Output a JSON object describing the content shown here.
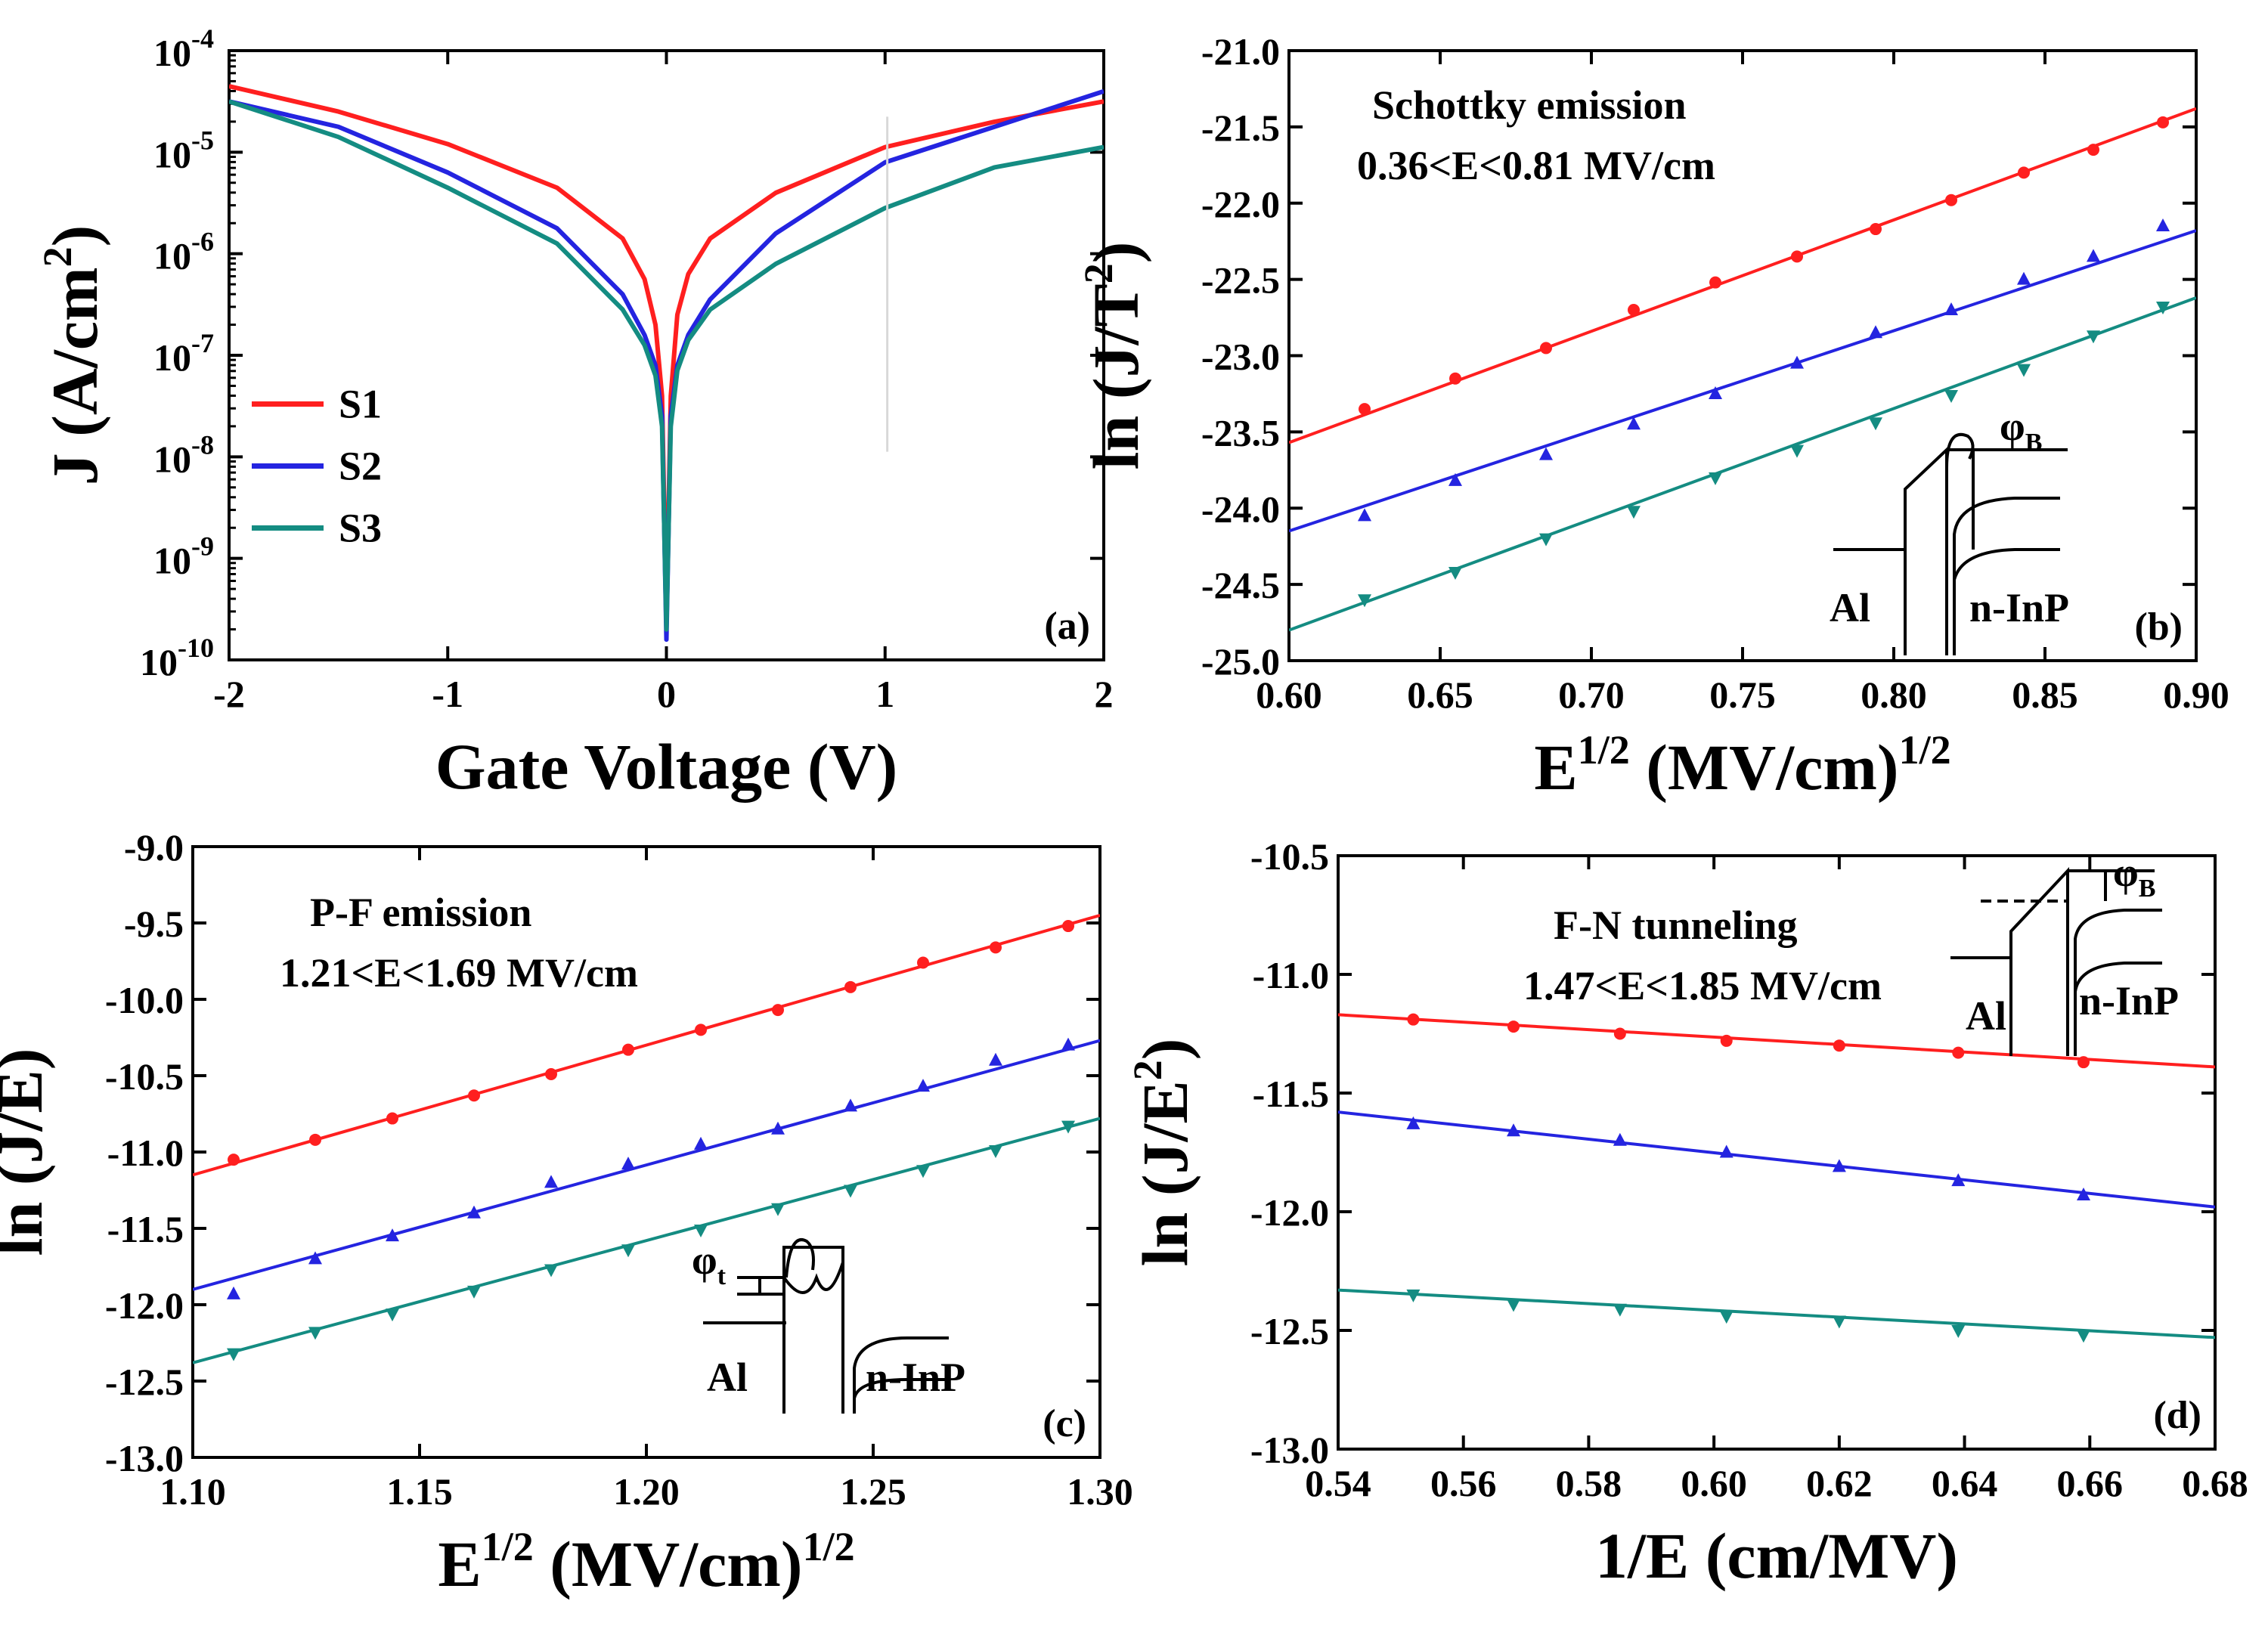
{
  "colors": {
    "S1": "#ff1f1f",
    "S2": "#2424e0",
    "S3": "#148c82"
  },
  "chart_data": [
    {
      "id": "a",
      "type": "line",
      "panel_label": "(a)",
      "xlabel": "Gate Voltage (V)",
      "ylabel": "J (A/cm²)",
      "ylabel_parts": {
        "main": "J (A/cm",
        "sup": "2",
        "end": ")"
      },
      "yscale": "log",
      "xlim": [
        -2,
        2
      ],
      "ylim_exp": [
        -10,
        -4
      ],
      "xticks": [
        -2,
        -1,
        0,
        1,
        2
      ],
      "xtick_labels": [
        "-2",
        "-1",
        "0",
        "1",
        "2"
      ],
      "ytick_exps": [
        -4,
        -5,
        -6,
        -7,
        -8,
        -9,
        -10
      ],
      "ytick_labels": [
        "-4",
        "-5",
        "-6",
        "-7",
        "-8",
        "-9",
        "-10"
      ],
      "ytick_base": "10",
      "legend": [
        "S1",
        "S2",
        "S3"
      ],
      "series": [
        {
          "name": "S1",
          "x": [
            -2,
            -1.5,
            -1,
            -0.5,
            -0.2,
            -0.1,
            -0.05,
            -0.02,
            0,
            0.02,
            0.05,
            0.1,
            0.2,
            0.5,
            1,
            1.5,
            2
          ],
          "log10_y": [
            -4.35,
            -4.6,
            -4.92,
            -5.35,
            -5.85,
            -6.25,
            -6.7,
            -7.4,
            -9.6,
            -7.4,
            -6.6,
            -6.2,
            -5.85,
            -5.4,
            -4.95,
            -4.7,
            -4.5
          ]
        },
        {
          "name": "S2",
          "x": [
            -2,
            -1.5,
            -1,
            -0.5,
            -0.2,
            -0.1,
            -0.05,
            -0.02,
            0,
            0.02,
            0.05,
            0.1,
            0.2,
            0.5,
            1,
            1.5,
            2
          ],
          "log10_y": [
            -4.5,
            -4.75,
            -5.2,
            -5.75,
            -6.4,
            -6.8,
            -7.1,
            -7.6,
            -9.8,
            -7.6,
            -7.1,
            -6.8,
            -6.45,
            -5.8,
            -5.1,
            -4.75,
            -4.4
          ]
        },
        {
          "name": "S3",
          "x": [
            -2,
            -1.5,
            -1,
            -0.5,
            -0.2,
            -0.1,
            -0.05,
            -0.02,
            0,
            0.02,
            0.05,
            0.1,
            0.2,
            0.5,
            1,
            1.5,
            2
          ],
          "log10_y": [
            -4.5,
            -4.85,
            -5.35,
            -5.9,
            -6.55,
            -6.9,
            -7.2,
            -7.7,
            -9.7,
            -7.7,
            -7.15,
            -6.85,
            -6.55,
            -6.1,
            -5.55,
            -5.15,
            -4.95
          ]
        }
      ]
    },
    {
      "id": "b",
      "type": "scatter",
      "panel_label": "(b)",
      "title": "Schottky emission",
      "subtitle": "0.36<E<0.81 MV/cm",
      "xlabel_parts": {
        "main": "E",
        "sup": "1/2",
        "mid": " (MV/cm)",
        "sup2": "1/2"
      },
      "ylabel_parts": {
        "main": "ln (J/T",
        "sup": "2",
        "end": ")"
      },
      "xlim": [
        0.6,
        0.9
      ],
      "ylim": [
        -25.0,
        -21.0
      ],
      "xticks": [
        0.6,
        0.65,
        0.7,
        0.75,
        0.8,
        0.85,
        0.9
      ],
      "xtick_labels": [
        "0.60",
        "0.65",
        "0.70",
        "0.75",
        "0.80",
        "0.85",
        "0.90"
      ],
      "yticks": [
        -21.0,
        -21.5,
        -22.0,
        -22.5,
        -23.0,
        -23.5,
        -24.0,
        -24.5,
        -25.0
      ],
      "ytick_labels": [
        "-21.0",
        "-21.5",
        "-22.0",
        "-22.5",
        "-23.0",
        "-23.5",
        "-24.0",
        "-24.5",
        "-25.0"
      ],
      "inset": {
        "left": "Al",
        "right": "n-InP",
        "barrier": "φ",
        "barrier_sub": "B"
      },
      "series": [
        {
          "name": "S1",
          "marker": "circle",
          "x": [
            0.625,
            0.655,
            0.685,
            0.714,
            0.741,
            0.768,
            0.794,
            0.819,
            0.843,
            0.866,
            0.889
          ],
          "y": [
            -23.35,
            -23.15,
            -22.95,
            -22.7,
            -22.52,
            -22.35,
            -22.17,
            -21.98,
            -21.8,
            -21.65,
            -21.47
          ],
          "fit": [
            [
              0.6,
              -23.57
            ],
            [
              0.9,
              -21.38
            ]
          ]
        },
        {
          "name": "S2",
          "marker": "triangle-up",
          "x": [
            0.625,
            0.655,
            0.685,
            0.714,
            0.741,
            0.768,
            0.794,
            0.819,
            0.843,
            0.866,
            0.889
          ],
          "y": [
            -24.05,
            -23.82,
            -23.65,
            -23.45,
            -23.25,
            -23.05,
            -22.85,
            -22.7,
            -22.5,
            -22.35,
            -22.15
          ],
          "fit": [
            [
              0.6,
              -24.15
            ],
            [
              0.9,
              -22.18
            ]
          ]
        },
        {
          "name": "S3",
          "marker": "triangle-down",
          "x": [
            0.625,
            0.655,
            0.685,
            0.714,
            0.741,
            0.768,
            0.794,
            0.819,
            0.843,
            0.866,
            0.889
          ],
          "y": [
            -24.6,
            -24.42,
            -24.2,
            -24.02,
            -23.8,
            -23.62,
            -23.44,
            -23.26,
            -23.09,
            -22.87,
            -22.68
          ],
          "fit": [
            [
              0.6,
              -24.8
            ],
            [
              0.9,
              -22.62
            ]
          ]
        }
      ]
    },
    {
      "id": "c",
      "type": "scatter",
      "panel_label": "(c)",
      "title": "P-F emission",
      "subtitle": "1.21<E<1.69 MV/cm",
      "xlabel_parts": {
        "main": "E",
        "sup": "1/2",
        "mid": " (MV/cm)",
        "sup2": "1/2"
      },
      "ylabel_parts": {
        "main": "ln (J/E)",
        "sup": "",
        "end": ""
      },
      "xlim": [
        1.1,
        1.3
      ],
      "ylim": [
        -13.0,
        -9.0
      ],
      "xticks": [
        1.1,
        1.15,
        1.2,
        1.25,
        1.3
      ],
      "xtick_labels": [
        "1.10",
        "1.15",
        "1.20",
        "1.25",
        "1.30"
      ],
      "yticks": [
        -9.0,
        -9.5,
        -10.0,
        -10.5,
        -11.0,
        -11.5,
        -12.0,
        -12.5,
        -13.0
      ],
      "ytick_labels": [
        "-9.0",
        "-9.5",
        "-10.0",
        "-10.5",
        "-11.0",
        "-11.5",
        "-12.0",
        "-12.5",
        "-13.0"
      ],
      "inset": {
        "left": "Al",
        "right": "n-InP",
        "barrier": "φ",
        "barrier_sub": "t"
      },
      "series": [
        {
          "name": "S1",
          "marker": "circle",
          "x": [
            1.109,
            1.127,
            1.144,
            1.162,
            1.179,
            1.196,
            1.212,
            1.229,
            1.245,
            1.261,
            1.277,
            1.293
          ],
          "y": [
            -11.05,
            -10.92,
            -10.78,
            -10.63,
            -10.49,
            -10.33,
            -10.2,
            -10.07,
            -9.92,
            -9.76,
            -9.66,
            -9.52
          ],
          "fit": [
            [
              1.1,
              -11.15
            ],
            [
              1.3,
              -9.45
            ]
          ]
        },
        {
          "name": "S2",
          "marker": "triangle-up",
          "x": [
            1.109,
            1.127,
            1.144,
            1.162,
            1.179,
            1.196,
            1.212,
            1.229,
            1.245,
            1.261,
            1.277,
            1.293
          ],
          "y": [
            -11.93,
            -11.7,
            -11.55,
            -11.4,
            -11.2,
            -11.08,
            -10.95,
            -10.85,
            -10.7,
            -10.57,
            -10.4,
            -10.3
          ],
          "fit": [
            [
              1.1,
              -11.9
            ],
            [
              1.3,
              -10.27
            ]
          ]
        },
        {
          "name": "S3",
          "marker": "triangle-down",
          "x": [
            1.109,
            1.127,
            1.144,
            1.162,
            1.179,
            1.196,
            1.212,
            1.229,
            1.245,
            1.261,
            1.277,
            1.293
          ],
          "y": [
            -12.32,
            -12.18,
            -12.06,
            -11.91,
            -11.77,
            -11.64,
            -11.51,
            -11.37,
            -11.25,
            -11.12,
            -10.99,
            -10.83
          ],
          "fit": [
            [
              1.1,
              -12.38
            ],
            [
              1.3,
              -10.78
            ]
          ]
        }
      ]
    },
    {
      "id": "d",
      "type": "scatter",
      "panel_label": "(d)",
      "title": "F-N tunneling",
      "subtitle": "1.47<E<1.85 MV/cm",
      "xlabel_parts": {
        "main": "1/E (cm/MV)",
        "sup": "",
        "mid": "",
        "sup2": ""
      },
      "ylabel_parts": {
        "main": "ln (J/E",
        "sup": "2",
        "end": ")"
      },
      "xlim": [
        0.54,
        0.68
      ],
      "ylim": [
        -13.0,
        -10.5
      ],
      "xticks": [
        0.54,
        0.56,
        0.58,
        0.6,
        0.62,
        0.64,
        0.66,
        0.68
      ],
      "xtick_labels": [
        "0.54",
        "0.56",
        "0.58",
        "0.60",
        "0.62",
        "0.64",
        "0.66",
        "0.68"
      ],
      "yticks": [
        -10.5,
        -11.0,
        -11.5,
        -12.0,
        -12.5,
        -13.0
      ],
      "ytick_labels": [
        "-10.5",
        "-11.0",
        "-11.5",
        "-12.0",
        "-12.5",
        "-13.0"
      ],
      "inset": {
        "left": "Al",
        "right": "n-InP",
        "barrier": "φ",
        "barrier_sub": "B"
      },
      "series": [
        {
          "name": "S1",
          "marker": "circle",
          "x": [
            0.552,
            0.568,
            0.585,
            0.602,
            0.62,
            0.639,
            0.659
          ],
          "y": [
            -11.19,
            -11.22,
            -11.25,
            -11.28,
            -11.3,
            -11.33,
            -11.37
          ],
          "fit": [
            [
              0.54,
              -11.17
            ],
            [
              0.68,
              -11.39
            ]
          ]
        },
        {
          "name": "S2",
          "marker": "triangle-up",
          "x": [
            0.552,
            0.568,
            0.585,
            0.602,
            0.62,
            0.639,
            0.659
          ],
          "y": [
            -11.63,
            -11.66,
            -11.7,
            -11.75,
            -11.81,
            -11.87,
            -11.93
          ],
          "fit": [
            [
              0.54,
              -11.58
            ],
            [
              0.68,
              -11.98
            ]
          ]
        },
        {
          "name": "S3",
          "marker": "triangle-down",
          "x": [
            0.552,
            0.568,
            0.585,
            0.602,
            0.62,
            0.639,
            0.659
          ],
          "y": [
            -12.35,
            -12.39,
            -12.41,
            -12.44,
            -12.46,
            -12.5,
            -12.52
          ],
          "fit": [
            [
              0.54,
              -12.33
            ],
            [
              0.68,
              -12.53
            ]
          ]
        }
      ]
    }
  ]
}
